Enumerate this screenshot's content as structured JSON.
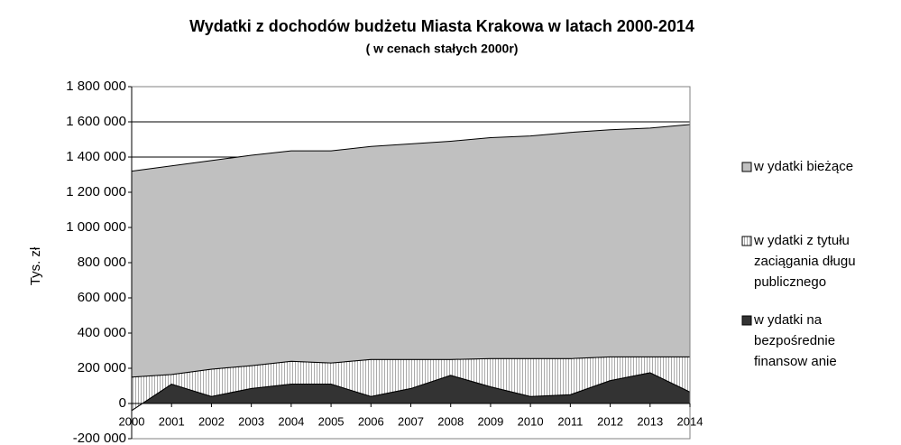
{
  "chart_data": {
    "type": "stacked_area",
    "title": "Wydatki z dochodów budżetu Miasta Krakowa w latach 2000-2014",
    "subtitle": "( w cenach stałych 2000r)",
    "y_label": "Tys. zł",
    "categories": [
      "2000",
      "2001",
      "2002",
      "2003",
      "2004",
      "2005",
      "2006",
      "2007",
      "2008",
      "2009",
      "2010",
      "2011",
      "2012",
      "2013",
      "2014"
    ],
    "series": [
      {
        "name": "w ydatki bieżące",
        "color": "#c0c0c0",
        "values": [
          1170000,
          1185000,
          1185000,
          1195000,
          1195000,
          1205000,
          1210000,
          1225000,
          1240000,
          1255000,
          1265000,
          1285000,
          1290000,
          1300000,
          1320000
        ]
      },
      {
        "name": "w ydatki z tytułu zaciągania długu publicznego",
        "color": "#ffffff",
        "values": [
          190000,
          55000,
          155000,
          130000,
          130000,
          120000,
          210000,
          165000,
          90000,
          160000,
          215000,
          205000,
          135000,
          90000,
          200000
        ]
      },
      {
        "name": "w ydatki na bezpośrednie finansow anie",
        "color": "#333333",
        "values": [
          -40000,
          110000,
          40000,
          85000,
          110000,
          110000,
          40000,
          85000,
          160000,
          95000,
          40000,
          50000,
          130000,
          175000,
          65000
        ]
      }
    ],
    "ylim": [
      -200000,
      1800000
    ],
    "yticks": [
      {
        "value": -200000,
        "label": "-200 000"
      },
      0,
      {
        "value": 200000,
        "label": "200 000"
      },
      {
        "value": 400000,
        "label": "400 000"
      },
      {
        "value": 600000,
        "label": "600 000"
      },
      {
        "value": 800000,
        "label": "800 000"
      },
      {
        "value": 1000000,
        "label": "1 000 000"
      },
      {
        "value": 1200000,
        "label": "1 200 000"
      },
      {
        "value": 1400000,
        "label": "1 400 000"
      },
      {
        "value": 1600000,
        "label": "1 600 000"
      },
      {
        "value": 1800000,
        "label": "1 800 000"
      }
    ],
    "grid": true,
    "legend": "right"
  }
}
